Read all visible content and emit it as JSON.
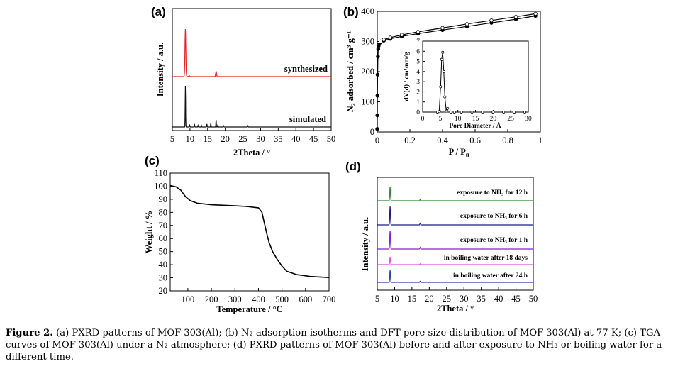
{
  "caption": {
    "label": "Figure 2.",
    "text": "(a) PXRD patterns of MOF-303(Al); (b) N₂ adsorption isotherms and DFT pore size distribution of MOF-303(Al) at 77 K; (c) TGA curves of MOF-303(Al) under a N₂ atmosphere; (d) PXRD patterns of MOF-303(Al) before and after exposure to NH₃ or boiling water for a different time."
  },
  "colors": {
    "synthesized": "#e4222a",
    "simulated": "#111111",
    "nh3_12h": "#2e8b2e",
    "nh3_6h": "#1a1a8c",
    "nh3_1h": "#8a1fd1",
    "water_18d": "#e14ee0",
    "water_24h": "#2a3fb8"
  },
  "chart_data": [
    {
      "panel": "(a)",
      "type": "line",
      "xlabel": "2Theta / °",
      "ylabel": "Intensity / a.u.",
      "xlim": [
        5,
        50
      ],
      "xticks": [
        5,
        10,
        15,
        20,
        25,
        30,
        35,
        40,
        45,
        50
      ],
      "series": [
        {
          "name": "synthesized",
          "baseline": 1.0,
          "peaks": [
            [
              8.7,
              1.0
            ],
            [
              17.4,
              0.11
            ],
            [
              9.8,
              0.02
            ]
          ]
        },
        {
          "name": "simulated",
          "baseline": 0.0,
          "peaks": [
            [
              8.7,
              1.0
            ],
            [
              9.9,
              0.06
            ],
            [
              11.3,
              0.05
            ],
            [
              12.3,
              0.04
            ],
            [
              13.2,
              0.05
            ],
            [
              14.8,
              0.07
            ],
            [
              15.9,
              0.09
            ],
            [
              17.4,
              0.17
            ],
            [
              17.9,
              0.06
            ],
            [
              19.5,
              0.03
            ],
            [
              26.4,
              0.03
            ]
          ]
        }
      ]
    },
    {
      "panel": "(b)",
      "type": "line",
      "xlabel": "P / P",
      "xlabel_sub": "0",
      "ylabel": "N₂ adsorbed / cm³ g⁻¹",
      "xlim": [
        0,
        1
      ],
      "ylim": [
        0,
        400
      ],
      "xticks": [
        0.0,
        0.2,
        0.4,
        0.6,
        0.8,
        1.0
      ],
      "yticks": [
        0,
        100,
        200,
        300,
        400
      ],
      "series": [
        {
          "name": "adsorption",
          "marker": "filled",
          "x": [
            0.0,
            0.0005,
            0.001,
            0.002,
            0.004,
            0.006,
            0.008,
            0.01,
            0.02,
            0.04,
            0.08,
            0.15,
            0.25,
            0.4,
            0.55,
            0.7,
            0.85,
            0.97
          ],
          "y": [
            10,
            55,
            120,
            190,
            250,
            275,
            285,
            290,
            297,
            303,
            309,
            317,
            326,
            338,
            350,
            362,
            374,
            385
          ]
        },
        {
          "name": "desorption",
          "marker": "open",
          "x": [
            0.97,
            0.85,
            0.7,
            0.55,
            0.4,
            0.25,
            0.15,
            0.08,
            0.04,
            0.02
          ],
          "y": [
            392,
            382,
            370,
            358,
            345,
            332,
            322,
            313,
            306,
            300
          ]
        }
      ],
      "inset": {
        "xlabel": "Pore Diameter / Å",
        "ylabel": "dV(d) / cm³/nm/g",
        "xlim": [
          0,
          30
        ],
        "ylim": [
          0,
          7
        ],
        "xticks": [
          0,
          5,
          10,
          15,
          20,
          25,
          30
        ],
        "yticks": [
          0,
          1,
          2,
          3,
          4,
          5,
          6,
          7
        ],
        "x": [
          4.2,
          4.7,
          5.1,
          5.4,
          5.7,
          6.0,
          6.3,
          6.7,
          7.1,
          7.5,
          8.0,
          9,
          11,
          14,
          17,
          20,
          23,
          26,
          29
        ],
        "y": [
          0,
          0.05,
          2.5,
          5.2,
          5.9,
          4.0,
          1.5,
          0.1,
          0.35,
          0.2,
          0.0,
          0,
          0,
          0,
          0,
          0,
          0,
          0,
          0
        ]
      }
    },
    {
      "panel": "(c)",
      "type": "line",
      "xlabel": "Temperature / °C",
      "ylabel": "Weight / %",
      "xlim": [
        25,
        700
      ],
      "ylim": [
        20,
        110
      ],
      "xticks": [
        100,
        200,
        300,
        400,
        500,
        600,
        700
      ],
      "yticks": [
        20,
        30,
        40,
        50,
        60,
        70,
        80,
        90,
        100,
        110
      ],
      "x": [
        25,
        50,
        70,
        90,
        110,
        140,
        200,
        300,
        350,
        400,
        415,
        425,
        435,
        445,
        460,
        480,
        500,
        520,
        560,
        620,
        700
      ],
      "y": [
        100.5,
        99.5,
        97,
        92,
        89,
        87,
        85.8,
        85,
        84.5,
        83.5,
        80,
        72,
        64,
        57,
        50,
        44,
        39,
        35,
        32.5,
        31,
        30.2
      ]
    },
    {
      "panel": "(d)",
      "type": "line",
      "xlabel": "2Theta / °",
      "ylabel": "Intensity / a.u.",
      "xlim": [
        5,
        50
      ],
      "xticks": [
        5,
        10,
        15,
        20,
        25,
        30,
        35,
        40,
        45,
        50
      ],
      "series": [
        {
          "name": "exposure to NH₃ for 12 h",
          "peaks": [
            [
              8.7,
              1.0
            ],
            [
              17.4,
              0.1
            ]
          ]
        },
        {
          "name": "exposure to NH₃ for 6 h",
          "peaks": [
            [
              8.7,
              1.3
            ],
            [
              17.4,
              0.12
            ]
          ]
        },
        {
          "name": "exposure to NH₃ for 1 h",
          "peaks": [
            [
              8.7,
              1.3
            ],
            [
              17.4,
              0.12
            ]
          ]
        },
        {
          "name": "in boiling water after 18 days",
          "peaks": [
            [
              8.7,
              0.55
            ],
            [
              17.4,
              0.06
            ]
          ]
        },
        {
          "name": "in boiling water after 24 h",
          "peaks": [
            [
              8.7,
              0.85
            ],
            [
              17.4,
              0.08
            ]
          ]
        }
      ]
    }
  ]
}
